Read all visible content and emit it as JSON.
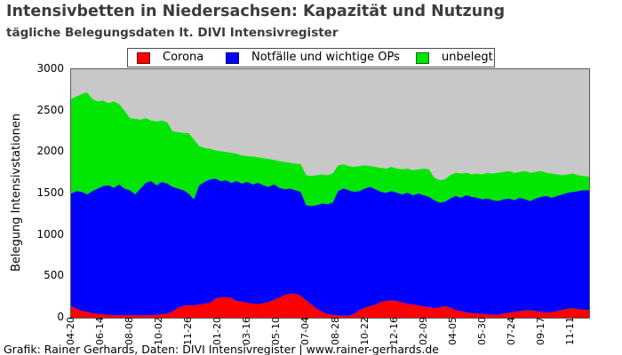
{
  "title": "Intensivbetten in Niedersachsen: Kapazität und Nutzung",
  "subtitle": "tägliche Belegungsdaten lt. DIVI Intensivregister",
  "footer": "Grafik: Rainer Gerhards, Daten: DIVI Intensivregister | www.rainer-gerhards.de",
  "colors": {
    "title_text": "#3c3c3c",
    "plot_bg": "#c8c8c8",
    "corona": "#ff0000",
    "notfaelle": "#0000ff",
    "unbelegt": "#00e600"
  },
  "chart_data": {
    "type": "area",
    "stacked": true,
    "title": "Intensivbetten in Niedersachsen: Kapazität und Nutzung",
    "subtitle": "tägliche Belegungsdaten lt. DIVI Intensivregister",
    "xlabel": "",
    "ylabel": "Belegung Intensivstationen",
    "ylim": [
      0,
      3000
    ],
    "yticks": [
      0,
      500,
      1000,
      1500,
      2000,
      2500,
      3000
    ],
    "grid": false,
    "legend_position": "top-center",
    "x_unit": "days since first tick (dates shown as MM-DD, 2020-04-20 .. 2022-11-11)",
    "xticks": [
      {
        "d": 0,
        "label": "04-20"
      },
      {
        "d": 55,
        "label": "06-14"
      },
      {
        "d": 110,
        "label": "08-08"
      },
      {
        "d": 165,
        "label": "10-02"
      },
      {
        "d": 220,
        "label": "11-26"
      },
      {
        "d": 275,
        "label": "01-20"
      },
      {
        "d": 330,
        "label": "03-16"
      },
      {
        "d": 385,
        "label": "05-10"
      },
      {
        "d": 440,
        "label": "07-04"
      },
      {
        "d": 495,
        "label": "08-28"
      },
      {
        "d": 550,
        "label": "10-22"
      },
      {
        "d": 605,
        "label": "12-16"
      },
      {
        "d": 660,
        "label": "02-09"
      },
      {
        "d": 715,
        "label": "04-05"
      },
      {
        "d": 770,
        "label": "05-30"
      },
      {
        "d": 825,
        "label": "07-24"
      },
      {
        "d": 880,
        "label": "09-17"
      },
      {
        "d": 935,
        "label": "11-11"
      }
    ],
    "days": [
      0,
      10,
      20,
      30,
      40,
      50,
      60,
      70,
      80,
      90,
      100,
      110,
      120,
      130,
      140,
      150,
      160,
      170,
      180,
      190,
      200,
      210,
      220,
      230,
      240,
      250,
      260,
      270,
      280,
      290,
      300,
      310,
      320,
      330,
      340,
      350,
      360,
      370,
      380,
      390,
      400,
      410,
      420,
      430,
      440,
      450,
      460,
      470,
      480,
      490,
      500,
      510,
      520,
      530,
      540,
      550,
      560,
      570,
      580,
      590,
      600,
      610,
      620,
      630,
      640,
      650,
      660,
      670,
      680,
      690,
      700,
      710,
      720,
      730,
      740,
      750,
      760,
      770,
      780,
      790,
      800,
      810,
      820,
      830,
      840,
      850,
      860,
      870,
      880,
      890,
      900,
      910,
      920,
      930,
      940,
      950,
      960,
      970
    ],
    "series": [
      {
        "id": "corona",
        "name": "Corona",
        "color": "#ff0000",
        "values": [
          140,
          110,
          85,
          70,
          55,
          45,
          40,
          35,
          32,
          30,
          30,
          28,
          30,
          28,
          30,
          32,
          35,
          40,
          50,
          75,
          115,
          145,
          150,
          150,
          160,
          170,
          180,
          230,
          245,
          247,
          240,
          200,
          195,
          180,
          170,
          165,
          175,
          190,
          215,
          245,
          275,
          290,
          290,
          265,
          210,
          160,
          110,
          70,
          45,
          32,
          28,
          25,
          25,
          45,
          90,
          120,
          140,
          160,
          190,
          205,
          210,
          200,
          185,
          170,
          160,
          150,
          135,
          125,
          115,
          125,
          140,
          120,
          95,
          80,
          65,
          55,
          50,
          45,
          40,
          35,
          38,
          50,
          60,
          70,
          80,
          88,
          90,
          80,
          70,
          62,
          65,
          80,
          95,
          110,
          115,
          105,
          95,
          95
        ]
      },
      {
        "id": "notfaelle-ops",
        "name": "Notfälle und wichtige OPs",
        "color": "#0000ff",
        "values": [
          1360,
          1420,
          1435,
          1420,
          1475,
          1515,
          1550,
          1565,
          1538,
          1580,
          1530,
          1512,
          1460,
          1532,
          1600,
          1618,
          1565,
          1600,
          1570,
          1505,
          1445,
          1395,
          1350,
          1280,
          1440,
          1470,
          1490,
          1450,
          1405,
          1413,
          1390,
          1450,
          1425,
          1460,
          1440,
          1465,
          1425,
          1390,
          1395,
          1325,
          1275,
          1270,
          1250,
          1255,
          1150,
          1190,
          1250,
          1310,
          1325,
          1358,
          1502,
          1535,
          1515,
          1475,
          1440,
          1440,
          1440,
          1390,
          1330,
          1305,
          1320,
          1310,
          1305,
          1340,
          1320,
          1350,
          1345,
          1335,
          1305,
          1265,
          1260,
          1320,
          1375,
          1370,
          1415,
          1405,
          1400,
          1385,
          1400,
          1385,
          1372,
          1380,
          1380,
          1350,
          1370,
          1342,
          1320,
          1360,
          1390,
          1408,
          1385,
          1390,
          1395,
          1400,
          1405,
          1425,
          1445,
          1445
        ]
      },
      {
        "id": "unbelegt",
        "name": "unbelegt",
        "color": "#00e600",
        "values": [
          1140,
          1140,
          1180,
          1230,
          1110,
          1050,
          1030,
          990,
          1040,
          970,
          940,
          870,
          910,
          830,
          780,
          730,
          770,
          740,
          740,
          670,
          680,
          690,
          730,
          720,
          470,
          410,
          370,
          340,
          360,
          340,
          360,
          330,
          340,
          310,
          335,
          305,
          325,
          335,
          295,
          320,
          330,
          310,
          320,
          335,
          360,
          360,
          360,
          350,
          350,
          350,
          310,
          290,
          290,
          300,
          300,
          280,
          250,
          270,
          290,
          290,
          290,
          290,
          300,
          290,
          300,
          290,
          320,
          330,
          270,
          270,
          270,
          280,
          280,
          290,
          270,
          270,
          290,
          300,
          310,
          320,
          340,
          330,
          330,
          330,
          310,
          340,
          340,
          320,
          310,
          280,
          290,
          260,
          230,
          220,
          220,
          190,
          170,
          160
        ]
      }
    ]
  }
}
